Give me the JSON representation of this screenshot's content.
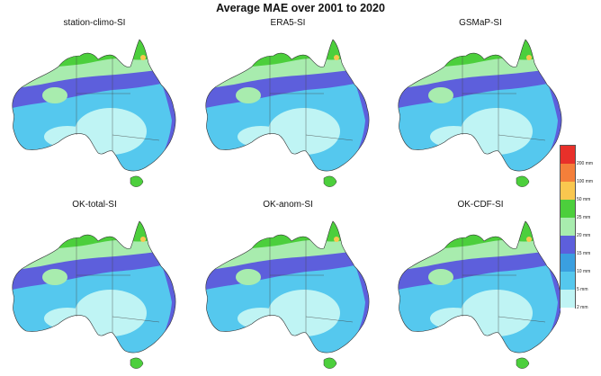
{
  "title": "Average MAE over 2001 to 2020",
  "panels": [
    {
      "label": "station-climo-SI"
    },
    {
      "label": "ERA5-SI"
    },
    {
      "label": "GSMaP-SI"
    },
    {
      "label": "OK-total-SI"
    },
    {
      "label": "OK-anom-SI"
    },
    {
      "label": "OK-CDF-SI"
    }
  ],
  "legend": {
    "ticks": [
      "200 mm",
      "100 mm",
      "50 mm",
      "25 mm",
      "20 mm",
      "15 mm",
      "10 mm",
      "5 mm",
      "2 mm"
    ],
    "colors": [
      "#e8302a",
      "#f47f3a",
      "#f9c74f",
      "#4ccf3c",
      "#a8ecae",
      "#5d5fdc",
      "#3a9fe0",
      "#55c8ee",
      "#bff4f4",
      "#ffffff"
    ]
  }
}
